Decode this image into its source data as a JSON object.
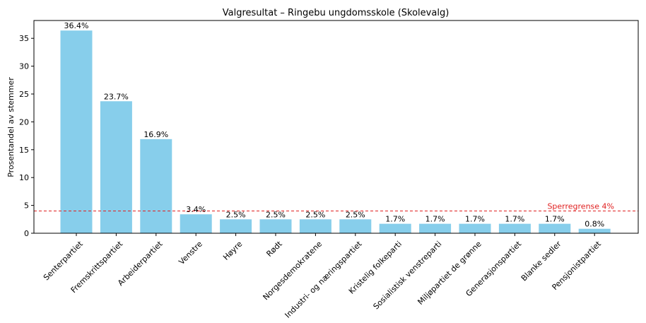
{
  "chart_data": {
    "type": "bar",
    "title": "Valgresultat – Ringebu ungdomsskole (Skolevalg)",
    "xlabel": "",
    "ylabel": "Prosentandel av stemmer",
    "categories": [
      "Senterpartiet",
      "Fremskrittspartiet",
      "Arbeiderpartiet",
      "Venstre",
      "Høyre",
      "Rødt",
      "Norgesdemokratene",
      "Industri- og næringspartiet",
      "Kristelig folkeparti",
      "Sosialistisk venstreparti",
      "Miljøpartiet de grønne",
      "Generasjonspartiet",
      "Blanke sedler",
      "Pensjonistpartiet"
    ],
    "values": [
      36.4,
      23.7,
      16.9,
      3.4,
      2.5,
      2.5,
      2.5,
      2.5,
      1.7,
      1.7,
      1.7,
      1.7,
      1.7,
      0.8
    ],
    "data_labels": [
      "36.4%",
      "23.7%",
      "16.9%",
      "3.4%",
      "2.5%",
      "2.5%",
      "2.5%",
      "2.5%",
      "1.7%",
      "1.7%",
      "1.7%",
      "1.7%",
      "1.7%",
      "0.8%"
    ],
    "ylim": [
      0,
      38.2
    ],
    "yticks": [
      0,
      5,
      10,
      15,
      20,
      25,
      30,
      35
    ],
    "grid": false,
    "threshold": {
      "value": 4,
      "label": "Sperregrense 4%"
    },
    "colors": {
      "bar": "#87ceeb",
      "threshold": "#e02020",
      "axis": "#000000"
    }
  }
}
